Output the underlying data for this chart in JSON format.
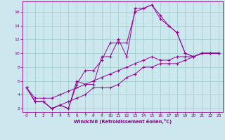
{
  "xlabel": "Windchill (Refroidissement éolien,°C)",
  "background_color": "#cce8ee",
  "grid_color": "#99cccc",
  "line_color": "#990099",
  "xlim": [
    -0.5,
    23.5
  ],
  "ylim": [
    1.5,
    17.5
  ],
  "xticks": [
    0,
    1,
    2,
    3,
    4,
    5,
    6,
    7,
    8,
    9,
    10,
    11,
    12,
    13,
    14,
    15,
    16,
    17,
    18,
    19,
    20,
    21,
    22,
    23
  ],
  "yticks": [
    2,
    4,
    6,
    8,
    10,
    12,
    14,
    16
  ],
  "series": [
    [
      5.0,
      3.0,
      3.0,
      2.0,
      2.5,
      2.0,
      6.0,
      5.5,
      5.5,
      9.5,
      9.5,
      12.0,
      9.5,
      16.5,
      16.5,
      17.0,
      15.5,
      14.0,
      13.0,
      10.0,
      9.5,
      10.0,
      10.0,
      10.0
    ],
    [
      5.0,
      3.0,
      3.0,
      2.0,
      2.5,
      2.0,
      5.5,
      7.5,
      7.5,
      9.0,
      11.5,
      11.5,
      11.5,
      16.0,
      16.5,
      17.0,
      15.0,
      14.0,
      13.0,
      10.0,
      9.5,
      10.0,
      10.0,
      10.0
    ],
    [
      5.0,
      3.0,
      3.0,
      2.0,
      2.5,
      3.0,
      3.5,
      4.0,
      5.0,
      5.0,
      5.0,
      5.5,
      6.5,
      7.0,
      8.0,
      8.0,
      8.5,
      8.5,
      8.5,
      9.0,
      9.5,
      10.0,
      10.0,
      10.0
    ],
    [
      5.0,
      3.5,
      3.5,
      3.5,
      4.0,
      4.5,
      5.0,
      5.5,
      6.0,
      6.5,
      7.0,
      7.5,
      8.0,
      8.5,
      9.0,
      9.5,
      9.0,
      9.0,
      9.5,
      9.5,
      9.5,
      10.0,
      10.0,
      10.0
    ]
  ]
}
